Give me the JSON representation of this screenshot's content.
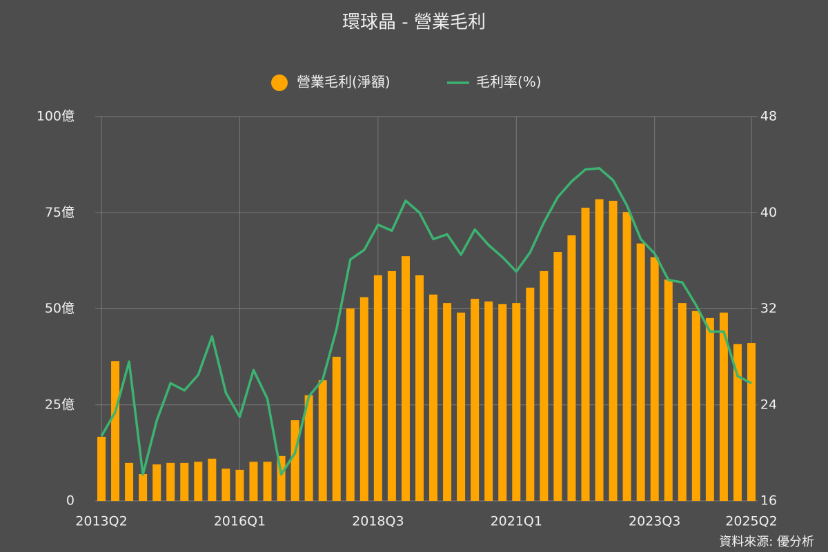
{
  "chart_data": {
    "type": "bar_line",
    "title": "環球晶 - 營業毛利",
    "source": "資料來源: 優分析",
    "categories": [
      "2013Q2",
      null,
      null,
      null,
      null,
      null,
      null,
      null,
      null,
      null,
      "2016Q1",
      null,
      null,
      null,
      null,
      null,
      null,
      null,
      null,
      null,
      "2018Q3",
      null,
      null,
      null,
      null,
      null,
      null,
      null,
      null,
      null,
      "2021Q1",
      null,
      null,
      null,
      null,
      null,
      null,
      null,
      null,
      null,
      "2023Q3",
      null,
      null,
      null,
      null,
      null,
      null,
      "2025Q2"
    ],
    "series": [
      {
        "name": "營業毛利(淨額)",
        "type": "bar",
        "color": "#ffa500",
        "axis": "y",
        "values": [
          16.7,
          36.4,
          9.9,
          7,
          9.5,
          9.9,
          9.9,
          10.2,
          11,
          8.4,
          8.1,
          10.2,
          10.2,
          11.7,
          21,
          27.5,
          31.4,
          37.5,
          50.1,
          53,
          58.7,
          59.8,
          63.7,
          58.7,
          53.7,
          51.5,
          49,
          52.6,
          51.9,
          51.2,
          51.5,
          55.5,
          59.8,
          64.8,
          69.1,
          76.3,
          78.5,
          78.1,
          75.2,
          67,
          63.4,
          57.6,
          51.5,
          49.4,
          47.6,
          49,
          40.8,
          41.1
        ]
      },
      {
        "name": "毛利率(%)",
        "type": "line",
        "color": "#3cb371",
        "axis": "y2",
        "values": [
          21.4,
          23.4,
          27.6,
          18.2,
          22.7,
          25.8,
          25.2,
          26.5,
          29.7,
          25,
          23,
          26.9,
          24.5,
          18.2,
          20,
          24.7,
          26.1,
          30.3,
          36.1,
          36.9,
          39,
          38.5,
          41,
          40,
          37.8,
          38.2,
          36.5,
          38.6,
          37.3,
          36.3,
          35.1,
          36.7,
          39.2,
          41.3,
          42.6,
          43.6,
          43.7,
          42.7,
          40.6,
          37.8,
          36.6,
          34.4,
          34.2,
          32.3,
          30.1,
          30.1,
          26.4,
          25.8
        ]
      }
    ],
    "ylim": [
      0,
      100
    ],
    "yticks": [
      0,
      {
        "value": 25,
        "label": "25億"
      },
      {
        "value": 50,
        "label": "50億"
      },
      {
        "value": 75,
        "label": "75億"
      },
      {
        "value": 100,
        "label": "100億"
      }
    ],
    "y2lim": [
      16,
      48
    ],
    "y2ticks": [
      16,
      24,
      32,
      40,
      48
    ],
    "grid": true,
    "legend": "top"
  }
}
